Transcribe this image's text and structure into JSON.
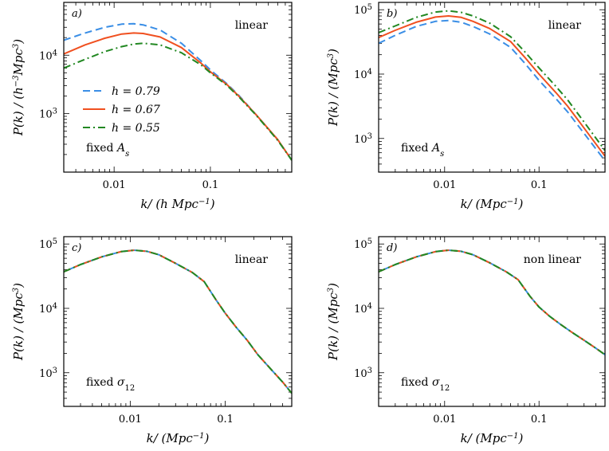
{
  "colors": {
    "h079": "#3a8ee6",
    "h067": "#f05020",
    "h055": "#228822",
    "frame": "#000000"
  },
  "chart_data": [
    {
      "type": "line",
      "panel": "a)",
      "xlabel": "k/ (h Mpc⁻¹)",
      "ylabel": "P(k) / (h⁻³Mpc³)",
      "xscale": "log",
      "yscale": "log",
      "xlim": [
        0.003,
        0.7
      ],
      "ylim": [
        100,
        80000
      ],
      "xticks": [
        0.01,
        0.1
      ],
      "xtick_labels": [
        "0.01",
        "0.1"
      ],
      "yticks": [
        1000,
        10000
      ],
      "ytick_labels": [
        "10³",
        "10⁴"
      ],
      "annotation": "linear",
      "note": "fixed As",
      "legend": {
        "placement": "center-left"
      },
      "series": [
        {
          "name": "h = 0.79",
          "style": "dashed",
          "color_key": "h079",
          "x": [
            0.003,
            0.005,
            0.008,
            0.012,
            0.016,
            0.02,
            0.03,
            0.05,
            0.08,
            0.1,
            0.15,
            0.2,
            0.3,
            0.5,
            0.7
          ],
          "y": [
            18000,
            24000,
            30000,
            34000,
            34500,
            33000,
            27000,
            16000,
            8000,
            5600,
            3200,
            2000,
            950,
            360,
            160
          ]
        },
        {
          "name": "h = 0.67",
          "style": "solid",
          "color_key": "h067",
          "x": [
            0.003,
            0.005,
            0.008,
            0.012,
            0.016,
            0.02,
            0.03,
            0.05,
            0.08,
            0.1,
            0.15,
            0.2,
            0.3,
            0.5,
            0.7
          ],
          "y": [
            10500,
            15000,
            19500,
            23000,
            24000,
            23500,
            20500,
            13500,
            7300,
            5200,
            3100,
            1950,
            950,
            360,
            160
          ]
        },
        {
          "name": "h = 0.55",
          "style": "dashdot",
          "color_key": "h055",
          "x": [
            0.003,
            0.005,
            0.008,
            0.012,
            0.016,
            0.02,
            0.03,
            0.05,
            0.08,
            0.1,
            0.15,
            0.2,
            0.3,
            0.5,
            0.7
          ],
          "y": [
            6000,
            8500,
            11500,
            14000,
            15500,
            16000,
            15000,
            11000,
            6800,
            5000,
            3000,
            1900,
            930,
            350,
            160
          ]
        }
      ]
    },
    {
      "type": "line",
      "panel": "b)",
      "xlabel": "k/ (Mpc⁻¹)",
      "ylabel": "P(k) / (Mpc³)",
      "xscale": "log",
      "yscale": "log",
      "xlim": [
        0.002,
        0.5
      ],
      "ylim": [
        300,
        130000
      ],
      "xticks": [
        0.01,
        0.1
      ],
      "xtick_labels": [
        "0.01",
        "0.1"
      ],
      "yticks": [
        1000,
        10000,
        100000
      ],
      "ytick_labels": [
        "10³",
        "10⁴",
        "10⁵"
      ],
      "annotation": "linear",
      "note": "fixed As",
      "series": [
        {
          "name": "h = 0.79",
          "style": "dashed",
          "color_key": "h079",
          "x": [
            0.002,
            0.003,
            0.005,
            0.008,
            0.011,
            0.015,
            0.02,
            0.03,
            0.05,
            0.07,
            0.1,
            0.15,
            0.2,
            0.3,
            0.5
          ],
          "y": [
            30000,
            40000,
            55000,
            66000,
            68000,
            64000,
            55000,
            42000,
            26000,
            15000,
            8000,
            4200,
            2600,
            1200,
            450
          ]
        },
        {
          "name": "h = 0.67",
          "style": "solid",
          "color_key": "h067",
          "x": [
            0.002,
            0.003,
            0.005,
            0.008,
            0.011,
            0.015,
            0.02,
            0.03,
            0.05,
            0.07,
            0.1,
            0.15,
            0.2,
            0.3,
            0.5
          ],
          "y": [
            37000,
            48000,
            64000,
            77000,
            80000,
            76000,
            66000,
            51000,
            32000,
            18500,
            10000,
            5200,
            3200,
            1450,
            530
          ]
        },
        {
          "name": "h = 0.55",
          "style": "dashdot",
          "color_key": "h055",
          "x": [
            0.002,
            0.003,
            0.005,
            0.008,
            0.011,
            0.015,
            0.02,
            0.03,
            0.05,
            0.07,
            0.1,
            0.15,
            0.2,
            0.3,
            0.5
          ],
          "y": [
            44000,
            56000,
            76000,
            92000,
            96000,
            91000,
            80000,
            62000,
            38000,
            22500,
            12500,
            6500,
            4000,
            1800,
            650
          ]
        }
      ]
    },
    {
      "type": "line",
      "panel": "c)",
      "xlabel": "k/ (Mpc⁻¹)",
      "ylabel": "P(k) / (Mpc³)",
      "xscale": "log",
      "yscale": "log",
      "xlim": [
        0.002,
        0.5
      ],
      "ylim": [
        300,
        130000
      ],
      "xticks": [
        0.01,
        0.1
      ],
      "xtick_labels": [
        "0.01",
        "0.1"
      ],
      "yticks": [
        1000,
        10000,
        100000
      ],
      "ytick_labels": [
        "10³",
        "10⁴",
        "10⁵"
      ],
      "annotation": "linear",
      "note": "fixed σ12",
      "series": [
        {
          "name": "h = 0.79",
          "style": "solid",
          "color_key": "h079",
          "x": [
            0.002,
            0.003,
            0.005,
            0.008,
            0.011,
            0.015,
            0.02,
            0.03,
            0.045,
            0.06,
            0.08,
            0.1,
            0.13,
            0.17,
            0.22,
            0.3,
            0.4,
            0.5
          ],
          "y": [
            37000,
            48000,
            63000,
            76000,
            80000,
            77000,
            68000,
            50000,
            36000,
            26000,
            13500,
            8400,
            5100,
            3200,
            1900,
            1150,
            720,
            480
          ]
        },
        {
          "name": "h = 0.67",
          "style": "dashed",
          "color_key": "h067",
          "x": [
            0.002,
            0.003,
            0.005,
            0.008,
            0.011,
            0.015,
            0.02,
            0.03,
            0.045,
            0.06,
            0.08,
            0.1,
            0.13,
            0.17,
            0.22,
            0.3,
            0.4,
            0.5
          ],
          "y": [
            37000,
            48000,
            63000,
            76000,
            80000,
            77000,
            68000,
            50000,
            36000,
            26000,
            13500,
            8400,
            5100,
            3200,
            1900,
            1150,
            720,
            480
          ]
        },
        {
          "name": "h = 0.55",
          "style": "dashdot",
          "color_key": "h055",
          "x": [
            0.002,
            0.003,
            0.005,
            0.008,
            0.011,
            0.015,
            0.02,
            0.03,
            0.045,
            0.06,
            0.08,
            0.1,
            0.13,
            0.17,
            0.22,
            0.3,
            0.4,
            0.5
          ],
          "y": [
            37000,
            48000,
            63000,
            76000,
            80000,
            77000,
            68000,
            50000,
            36000,
            26000,
            13500,
            8400,
            5100,
            3200,
            1900,
            1150,
            720,
            480
          ]
        }
      ]
    },
    {
      "type": "line",
      "panel": "d)",
      "xlabel": "k/ (Mpc⁻¹)",
      "ylabel": "P(k) / (Mpc³)",
      "xscale": "log",
      "yscale": "log",
      "xlim": [
        0.002,
        0.5
      ],
      "ylim": [
        300,
        130000
      ],
      "xticks": [
        0.01,
        0.1
      ],
      "xtick_labels": [
        "0.01",
        "0.1"
      ],
      "yticks": [
        1000,
        10000,
        100000
      ],
      "ytick_labels": [
        "10³",
        "10⁴",
        "10⁵"
      ],
      "annotation": "non linear",
      "note": "fixed σ12",
      "series": [
        {
          "name": "h = 0.79",
          "style": "solid",
          "color_key": "h079",
          "x": [
            0.002,
            0.003,
            0.005,
            0.008,
            0.011,
            0.015,
            0.02,
            0.03,
            0.045,
            0.06,
            0.08,
            0.1,
            0.13,
            0.17,
            0.22,
            0.3,
            0.4,
            0.5
          ],
          "y": [
            37000,
            48000,
            63000,
            76000,
            80000,
            77000,
            68000,
            51000,
            37000,
            28000,
            15500,
            10500,
            7500,
            5600,
            4300,
            3200,
            2400,
            1900
          ]
        },
        {
          "name": "h = 0.67",
          "style": "dashed",
          "color_key": "h067",
          "x": [
            0.002,
            0.003,
            0.005,
            0.008,
            0.011,
            0.015,
            0.02,
            0.03,
            0.045,
            0.06,
            0.08,
            0.1,
            0.13,
            0.17,
            0.22,
            0.3,
            0.4,
            0.5
          ],
          "y": [
            37000,
            48000,
            63000,
            76000,
            80000,
            77000,
            68000,
            51000,
            37000,
            28000,
            15500,
            10500,
            7500,
            5600,
            4300,
            3200,
            2400,
            1900
          ]
        },
        {
          "name": "h = 0.55",
          "style": "dashdot",
          "color_key": "h055",
          "x": [
            0.002,
            0.003,
            0.005,
            0.008,
            0.011,
            0.015,
            0.02,
            0.03,
            0.045,
            0.06,
            0.08,
            0.1,
            0.13,
            0.17,
            0.22,
            0.3,
            0.4,
            0.5
          ],
          "y": [
            37000,
            48000,
            63000,
            76000,
            80000,
            77000,
            68000,
            51000,
            37000,
            28000,
            15500,
            10500,
            7500,
            5600,
            4300,
            3200,
            2400,
            1900
          ]
        }
      ]
    }
  ]
}
